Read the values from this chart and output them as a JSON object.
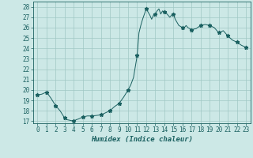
{
  "title": "",
  "xlabel": "Humidex (Indice chaleur)",
  "ylabel": "",
  "bg_color": "#cce8e6",
  "grid_color": "#a0c8c4",
  "line_color": "#1a6060",
  "marker_color": "#1a6060",
  "ylim": [
    16.8,
    28.5
  ],
  "xlim": [
    -0.5,
    23.5
  ],
  "yticks": [
    17,
    18,
    19,
    20,
    21,
    22,
    23,
    24,
    25,
    26,
    27,
    28
  ],
  "xticks": [
    0,
    1,
    2,
    3,
    4,
    5,
    6,
    7,
    8,
    9,
    10,
    11,
    12,
    13,
    14,
    15,
    16,
    17,
    18,
    19,
    20,
    21,
    22,
    23
  ],
  "x": [
    0,
    0.5,
    1,
    1.5,
    2,
    2.5,
    3,
    3.2,
    3.5,
    4,
    4.3,
    4.5,
    5,
    5.5,
    6,
    6.5,
    7,
    7.5,
    8,
    8.5,
    9,
    9.5,
    10,
    10.3,
    10.6,
    11,
    11.2,
    11.4,
    11.6,
    11.8,
    12,
    12.2,
    12.4,
    12.6,
    12.8,
    13,
    13.2,
    13.4,
    13.6,
    13.8,
    14,
    14.2,
    14.4,
    14.6,
    14.8,
    15,
    15.2,
    15.4,
    15.6,
    15.8,
    16,
    16.2,
    16.4,
    16.6,
    17,
    17.5,
    18,
    18.5,
    19,
    19.5,
    20,
    20.5,
    21,
    21.5,
    22,
    22.5,
    23
  ],
  "y": [
    19.5,
    19.6,
    19.8,
    19.2,
    18.5,
    18.0,
    17.3,
    17.15,
    17.1,
    17.0,
    17.15,
    17.2,
    17.4,
    17.5,
    17.5,
    17.55,
    17.6,
    17.8,
    18.0,
    18.4,
    18.7,
    19.3,
    20.0,
    20.5,
    21.2,
    23.3,
    25.5,
    26.2,
    26.8,
    27.3,
    27.8,
    27.5,
    27.2,
    26.8,
    27.2,
    27.3,
    27.6,
    27.8,
    27.3,
    27.6,
    27.5,
    27.4,
    27.2,
    27.0,
    27.2,
    27.3,
    26.8,
    26.5,
    26.2,
    26.1,
    26.0,
    26.0,
    26.2,
    26.0,
    25.8,
    25.9,
    26.2,
    26.3,
    26.2,
    26.0,
    25.5,
    25.7,
    25.2,
    24.8,
    24.6,
    24.3,
    24.1
  ],
  "marker_x": [
    0,
    1,
    2,
    3,
    4,
    5,
    6,
    7,
    8,
    9,
    10,
    11,
    12,
    13,
    14,
    15,
    16,
    17,
    18,
    19,
    20,
    21,
    22,
    23
  ],
  "marker_y": [
    19.5,
    19.8,
    18.5,
    17.3,
    17.0,
    17.4,
    17.5,
    17.6,
    18.0,
    18.7,
    20.0,
    23.3,
    27.8,
    27.3,
    27.5,
    27.3,
    26.0,
    25.8,
    26.2,
    26.2,
    25.5,
    25.2,
    24.6,
    24.1
  ],
  "tick_fontsize": 5.5,
  "xlabel_fontsize": 6.5
}
